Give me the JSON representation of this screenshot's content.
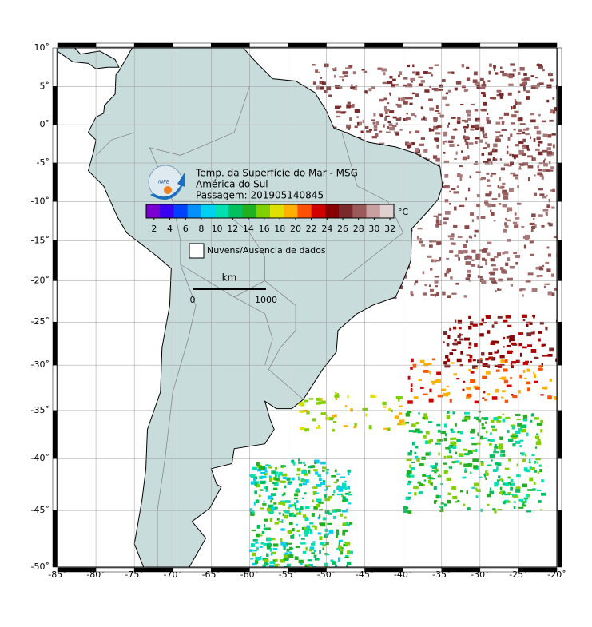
{
  "map": {
    "title_lines": [
      "Temp. da Superfície do Mar - MSG",
      "América do Sul",
      "Passagem: 201905140845"
    ],
    "logo_text": "INPE",
    "xlim": [
      -85,
      -20
    ],
    "ylim": [
      -50,
      10
    ],
    "xticks": [
      {
        "value": -85,
        "label": "-85˚"
      },
      {
        "value": -80,
        "label": "-80˚"
      },
      {
        "value": -75,
        "label": "-75˚"
      },
      {
        "value": -70,
        "label": "-70˚"
      },
      {
        "value": -65,
        "label": "-65˚"
      },
      {
        "value": -60,
        "label": "-60˚"
      },
      {
        "value": -55,
        "label": "-55˚"
      },
      {
        "value": -50,
        "label": "-50˚"
      },
      {
        "value": -45,
        "label": "-45˚"
      },
      {
        "value": -40,
        "label": "-40˚"
      },
      {
        "value": -35,
        "label": "-35˚"
      },
      {
        "value": -30,
        "label": "-30˚"
      },
      {
        "value": -25,
        "label": "-25˚"
      },
      {
        "value": -20,
        "label": "-20˚"
      }
    ],
    "yticks": [
      {
        "value": 10,
        "label": "10˚"
      },
      {
        "value": 5,
        "label": "5˚"
      },
      {
        "value": 0,
        "label": "0˚"
      },
      {
        "value": -5,
        "label": "-5˚"
      },
      {
        "value": -10,
        "label": "-10˚"
      },
      {
        "value": -15,
        "label": "-15˚"
      },
      {
        "value": -20,
        "label": "-20˚"
      },
      {
        "value": -25,
        "label": "-25˚"
      },
      {
        "value": -30,
        "label": "-30˚"
      },
      {
        "value": -35,
        "label": "-35˚"
      },
      {
        "value": -40,
        "label": "-40˚"
      },
      {
        "value": -45,
        "label": "-45˚"
      },
      {
        "value": -50,
        "label": "-50˚"
      }
    ],
    "colorbar": {
      "unit": "°C",
      "clim": [
        1,
        32.5
      ],
      "ticks": [
        2,
        4,
        6,
        8,
        10,
        12,
        14,
        16,
        18,
        20,
        22,
        24,
        26,
        28,
        30,
        32
      ],
      "colors": [
        "#7a00d0",
        "#3a00f0",
        "#0040ff",
        "#0090ff",
        "#00d0f0",
        "#00e0b0",
        "#00c060",
        "#20b020",
        "#80d000",
        "#e0e000",
        "#ffb000",
        "#ff5000",
        "#d00000",
        "#8a0000",
        "#7a2a2a",
        "#9a5a5a",
        "#c8a0a0",
        "#e0d0d0"
      ]
    },
    "no_data_label": "Nuvens/Ausencia de dados",
    "scale": {
      "unit": "km",
      "start_label": "0",
      "end_label": "1000"
    }
  }
}
